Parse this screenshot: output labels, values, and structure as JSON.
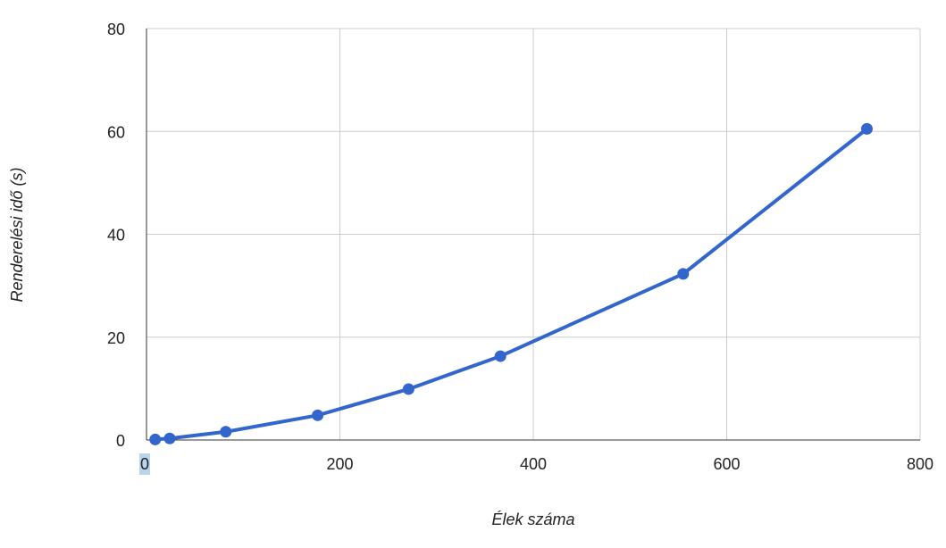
{
  "chart_data": {
    "type": "line",
    "title": "",
    "xlabel": "Élek száma",
    "ylabel": "Renderelési idő (s)",
    "xlim": [
      0,
      800
    ],
    "ylim": [
      0,
      80
    ],
    "x_ticks": [
      0,
      200,
      400,
      600,
      800
    ],
    "y_ticks": [
      0,
      20,
      40,
      60,
      80
    ],
    "x_tick_labels": [
      "0",
      "200",
      "400",
      "600",
      "800"
    ],
    "y_tick_labels": [
      "0",
      "20",
      "40",
      "60",
      "80"
    ],
    "grid": true,
    "legend": "none",
    "series": [
      {
        "color": "#3366cc",
        "x": [
          9,
          24,
          82,
          177,
          271,
          366,
          555,
          745
        ],
        "y": [
          0.1,
          0.3,
          1.6,
          4.8,
          9.9,
          16.3,
          32.3,
          60.5
        ]
      }
    ]
  }
}
